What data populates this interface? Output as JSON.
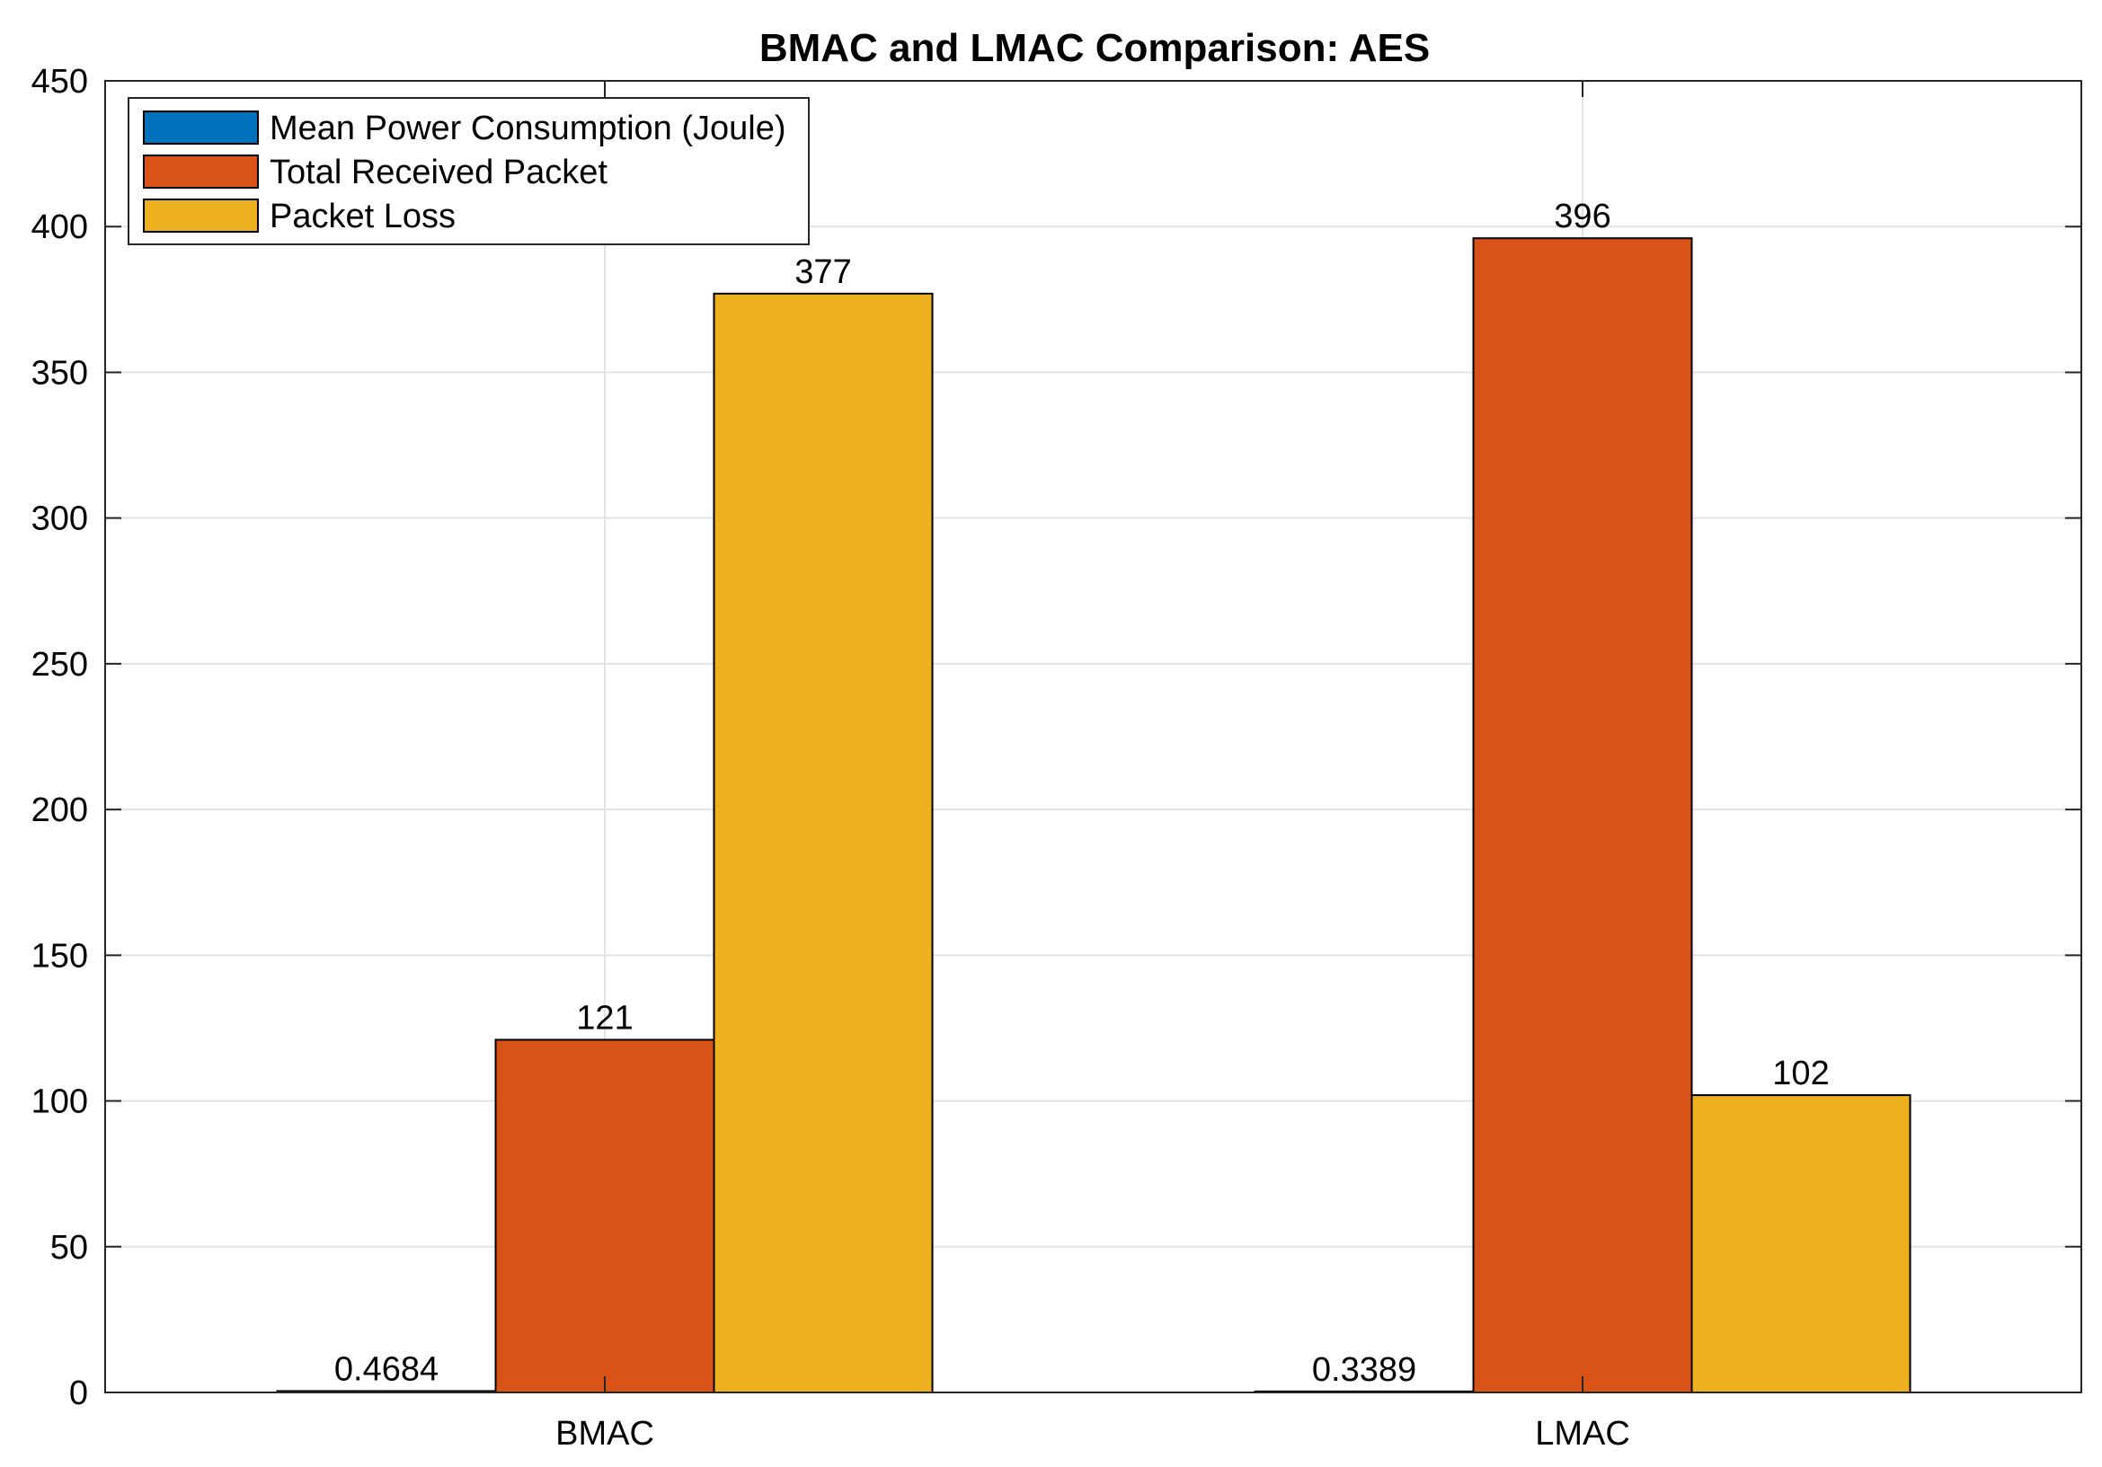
{
  "chart_data": {
    "type": "bar",
    "title": "BMAC and LMAC Comparison: AES",
    "xlabel": "",
    "ylabel": "",
    "categories": [
      "BMAC",
      "LMAC"
    ],
    "ylim": [
      0,
      450
    ],
    "yticks": [
      0,
      50,
      100,
      150,
      200,
      250,
      300,
      350,
      400,
      450
    ],
    "ytick_labels": [
      "0",
      "50",
      "100",
      "150",
      "200",
      "250",
      "300",
      "350",
      "400",
      "450"
    ],
    "grid": true,
    "legend_position": "top-left",
    "series": [
      {
        "name": "Mean Power Consumption (Joule)",
        "color": "#0072BD",
        "values": [
          0.4684,
          0.3389
        ],
        "labels": [
          "0.4684",
          "0.3389"
        ]
      },
      {
        "name": "Total Received Packet",
        "color": "#D95319",
        "values": [
          121,
          396
        ],
        "labels": [
          "121",
          "396"
        ]
      },
      {
        "name": "Packet Loss",
        "color": "#EDB120",
        "values": [
          377,
          102
        ],
        "labels": [
          "377",
          "102"
        ]
      }
    ]
  }
}
